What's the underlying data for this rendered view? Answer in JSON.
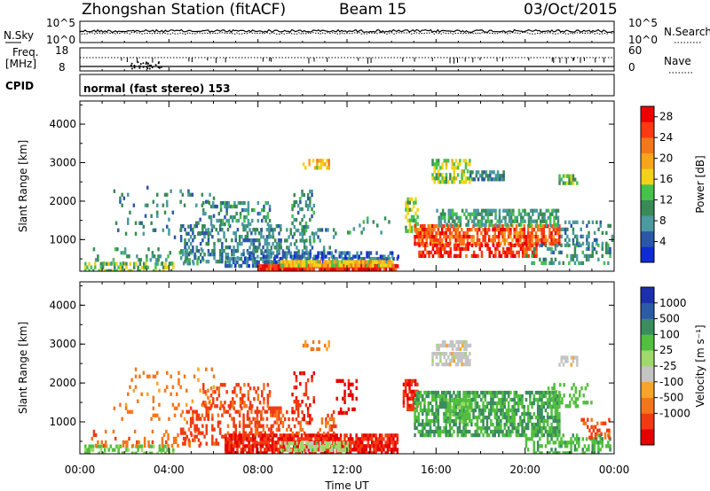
{
  "header": {
    "station": "Zhongshan Station (fitACF)",
    "beam": "Beam 15",
    "date": "03/Oct/2015"
  },
  "top_panels": {
    "nsky_label": "N.Sky",
    "nsky_ticks": [
      "10^5",
      "10^0"
    ],
    "nsearch_label": "N.Search",
    "nsearch_ticks": [
      "10^5",
      "10^0"
    ],
    "freq_label": "Freq.",
    "freq_unit": "[MHz]",
    "freq_ticks": [
      "18",
      "8"
    ],
    "nave_label": "Nave",
    "nave_ticks": [
      "60",
      "0"
    ],
    "cpid_label": "CPID",
    "cpid_text": "normal (fast stereo) 153"
  },
  "colors": {
    "power": [
      "#0f2bd6",
      "#2c57a8",
      "#4a9aa0",
      "#3a8a56",
      "#45c24a",
      "#f2d21a",
      "#f9a51a",
      "#f5771a",
      "#ff3a12",
      "#ee0000"
    ],
    "velocity": [
      "#e60000",
      "#f23a12",
      "#f5761a",
      "#f7a428",
      "#c4c4c4",
      "#9fd86b",
      "#52bf3e",
      "#3b8c5e",
      "#2d5aa6",
      "#1d2fb0"
    ]
  },
  "chart_data": [
    {
      "type": "heatmap",
      "name": "power",
      "xlabel": "",
      "ylabel": "Slant Range [km]",
      "x_ticks": [
        "00:00",
        "04:00",
        "08:00",
        "12:00",
        "16:00",
        "20:00",
        "00:00"
      ],
      "y_ticks": [
        "1000",
        "2000",
        "3000",
        "4000"
      ],
      "ylim": [
        180,
        4600
      ],
      "colorbar_label": "Power [dB]",
      "colorbar_ticks": [
        "4",
        "8",
        "12",
        "16",
        "20",
        "24",
        "28"
      ],
      "colorbar_range": [
        0,
        30
      ],
      "blobs": [
        {
          "t": [
            0.2,
            4.2
          ],
          "r": [
            200,
            420
          ],
          "v": 14,
          "d": 0.5
        },
        {
          "t": [
            0.5,
            5.5
          ],
          "r": [
            420,
            800
          ],
          "v": 10,
          "d": 0.18
        },
        {
          "t": [
            1.5,
            6.0
          ],
          "r": [
            1100,
            2400
          ],
          "v": 8,
          "d": 0.1
        },
        {
          "t": [
            4.5,
            9.0
          ],
          "r": [
            400,
            1400
          ],
          "v": 7,
          "d": 0.4
        },
        {
          "t": [
            5.5,
            8.5
          ],
          "r": [
            1400,
            2000
          ],
          "v": 9,
          "d": 0.35
        },
        {
          "t": [
            6.5,
            14.3
          ],
          "r": [
            350,
            550
          ],
          "v": 6,
          "d": 0.7
        },
        {
          "t": [
            7.5,
            14.3
          ],
          "r": [
            550,
            700
          ],
          "v": 5,
          "d": 0.6
        },
        {
          "t": [
            8.0,
            14.3
          ],
          "r": [
            180,
            360
          ],
          "v": 27,
          "d": 0.95
        },
        {
          "t": [
            9.0,
            14.0
          ],
          "r": [
            360,
            470
          ],
          "v": 18,
          "d": 0.85
        },
        {
          "t": [
            7.5,
            11.5
          ],
          "r": [
            700,
            1300
          ],
          "v": 8,
          "d": 0.25
        },
        {
          "t": [
            9.5,
            10.5
          ],
          "r": [
            1000,
            2300
          ],
          "v": 9,
          "d": 0.3
        },
        {
          "t": [
            12.0,
            14.0
          ],
          "r": [
            1200,
            1600
          ],
          "v": 10,
          "d": 0.1
        },
        {
          "t": [
            10.0,
            11.2
          ],
          "r": [
            2900,
            3100
          ],
          "v": 18,
          "d": 0.5
        },
        {
          "t": [
            14.6,
            15.2
          ],
          "r": [
            1200,
            2100
          ],
          "v": 14,
          "d": 0.6
        },
        {
          "t": [
            15.0,
            21.5
          ],
          "r": [
            900,
            1400
          ],
          "v": 24,
          "d": 0.75
        },
        {
          "t": [
            15.2,
            20.5
          ],
          "r": [
            550,
            900
          ],
          "v": 27,
          "d": 0.55
        },
        {
          "t": [
            16.0,
            21.5
          ],
          "r": [
            1400,
            1800
          ],
          "v": 10,
          "d": 0.6
        },
        {
          "t": [
            15.8,
            17.5
          ],
          "r": [
            2500,
            3100
          ],
          "v": 15,
          "d": 0.55
        },
        {
          "t": [
            17.5,
            19.0
          ],
          "r": [
            2600,
            2800
          ],
          "v": 8,
          "d": 0.7
        },
        {
          "t": [
            20.0,
            23.8
          ],
          "r": [
            400,
            900
          ],
          "v": 9,
          "d": 0.35
        },
        {
          "t": [
            21.5,
            23.9
          ],
          "r": [
            900,
            1500
          ],
          "v": 8,
          "d": 0.25
        },
        {
          "t": [
            21.5,
            22.3
          ],
          "r": [
            2500,
            2700
          ],
          "v": 12,
          "d": 0.6
        }
      ]
    },
    {
      "type": "heatmap",
      "name": "velocity",
      "xlabel": "Time UT",
      "ylabel": "Slant Range [km]",
      "x_ticks": [
        "00:00",
        "04:00",
        "08:00",
        "12:00",
        "16:00",
        "20:00",
        "00:00"
      ],
      "y_ticks": [
        "1000",
        "2000",
        "3000",
        "4000"
      ],
      "ylim": [
        180,
        4600
      ],
      "colorbar_label": "Velocity [m s⁻¹]",
      "colorbar_ticks": [
        "1000",
        "500",
        "100",
        "25",
        "-25",
        "-100",
        "-500",
        "-1000"
      ],
      "colorbar_range": [
        -1000,
        1000
      ],
      "blobs": [
        {
          "t": [
            0.2,
            4.2
          ],
          "r": [
            200,
            420
          ],
          "v": 120,
          "d": 0.5
        },
        {
          "t": [
            0.5,
            5.5
          ],
          "r": [
            420,
            800
          ],
          "v": -200,
          "d": 0.15
        },
        {
          "t": [
            1.5,
            6.0
          ],
          "r": [
            1100,
            2400
          ],
          "v": -150,
          "d": 0.08
        },
        {
          "t": [
            4.5,
            9.0
          ],
          "r": [
            400,
            1400
          ],
          "v": -350,
          "d": 0.35
        },
        {
          "t": [
            5.5,
            8.5
          ],
          "r": [
            1400,
            2000
          ],
          "v": -300,
          "d": 0.35
        },
        {
          "t": [
            6.5,
            14.3
          ],
          "r": [
            180,
            700
          ],
          "v": -500,
          "d": 0.8
        },
        {
          "t": [
            9.0,
            12.0
          ],
          "r": [
            250,
            500
          ],
          "v": 60,
          "d": 0.7
        },
        {
          "t": [
            7.5,
            11.5
          ],
          "r": [
            700,
            1300
          ],
          "v": -250,
          "d": 0.25
        },
        {
          "t": [
            9.5,
            10.5
          ],
          "r": [
            1000,
            2300
          ],
          "v": -400,
          "d": 0.3
        },
        {
          "t": [
            11.5,
            12.4
          ],
          "r": [
            1200,
            2100
          ],
          "v": -700,
          "d": 0.3
        },
        {
          "t": [
            10.0,
            11.2
          ],
          "r": [
            2900,
            3100
          ],
          "v": -120,
          "d": 0.4
        },
        {
          "t": [
            14.5,
            15.2
          ],
          "r": [
            1300,
            2100
          ],
          "v": -500,
          "d": 0.7
        },
        {
          "t": [
            15.0,
            21.5
          ],
          "r": [
            700,
            1800
          ],
          "v": 300,
          "d": 0.7
        },
        {
          "t": [
            16.5,
            17.5
          ],
          "r": [
            1000,
            1600
          ],
          "v": 120,
          "d": 0.6
        },
        {
          "t": [
            15.8,
            17.5
          ],
          "r": [
            2500,
            2800
          ],
          "v": 0,
          "d": 0.7
        },
        {
          "t": [
            16.0,
            17.5
          ],
          "r": [
            2900,
            3100
          ],
          "v": 0,
          "d": 0.6
        },
        {
          "t": [
            20.0,
            23.8
          ],
          "r": [
            200,
            700
          ],
          "v": 250,
          "d": 0.45
        },
        {
          "t": [
            22.5,
            23.8
          ],
          "r": [
            600,
            1100
          ],
          "v": -300,
          "d": 0.3
        },
        {
          "t": [
            21.5,
            22.3
          ],
          "r": [
            2500,
            2700
          ],
          "v": 0,
          "d": 0.6
        },
        {
          "t": [
            21.0,
            23.0
          ],
          "r": [
            1400,
            2000
          ],
          "v": 200,
          "d": 0.3
        }
      ]
    }
  ]
}
